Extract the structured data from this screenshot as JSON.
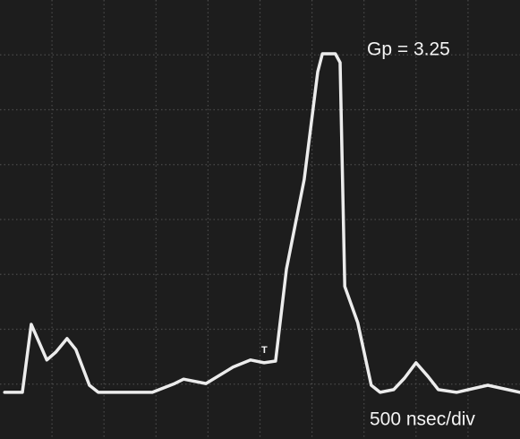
{
  "chart_data": {
    "type": "line",
    "annotations": [
      "Gp = 3.25",
      "500 nsec/div",
      "T"
    ],
    "x": [
      0.09,
      0.43,
      0.6,
      0.9,
      1.07,
      1.29,
      1.46,
      1.72,
      1.89,
      2.93,
      3.36,
      3.53,
      3.96,
      4.48,
      4.82,
      5.08,
      5.3,
      5.51,
      5.85,
      6.11,
      6.2,
      6.45,
      6.54,
      6.63,
      6.88,
      7.14,
      7.31,
      7.57,
      7.78,
      8.0,
      8.23,
      8.43,
      8.78,
      9.38,
      10.0
    ],
    "series": [
      {
        "color": "#ececec",
        "values": [
          0.85,
          0.85,
          2.09,
          1.44,
          1.58,
          1.83,
          1.63,
          0.98,
          0.85,
          0.85,
          1.01,
          1.09,
          1.01,
          1.31,
          1.44,
          1.39,
          1.42,
          3.1,
          4.73,
          6.69,
          7.02,
          7.02,
          6.86,
          2.78,
          2.12,
          0.98,
          0.85,
          0.9,
          1.11,
          1.39,
          1.14,
          0.9,
          0.85,
          0.98,
          0.85
        ]
      }
    ],
    "xlim": [
      0,
      10
    ],
    "ylim": [
      0,
      8
    ],
    "xticks": [
      1,
      2,
      3,
      4,
      5,
      6,
      7,
      8,
      9
    ],
    "yticks": [
      1,
      2,
      3,
      4,
      5,
      6,
      7
    ],
    "grid": true
  }
}
